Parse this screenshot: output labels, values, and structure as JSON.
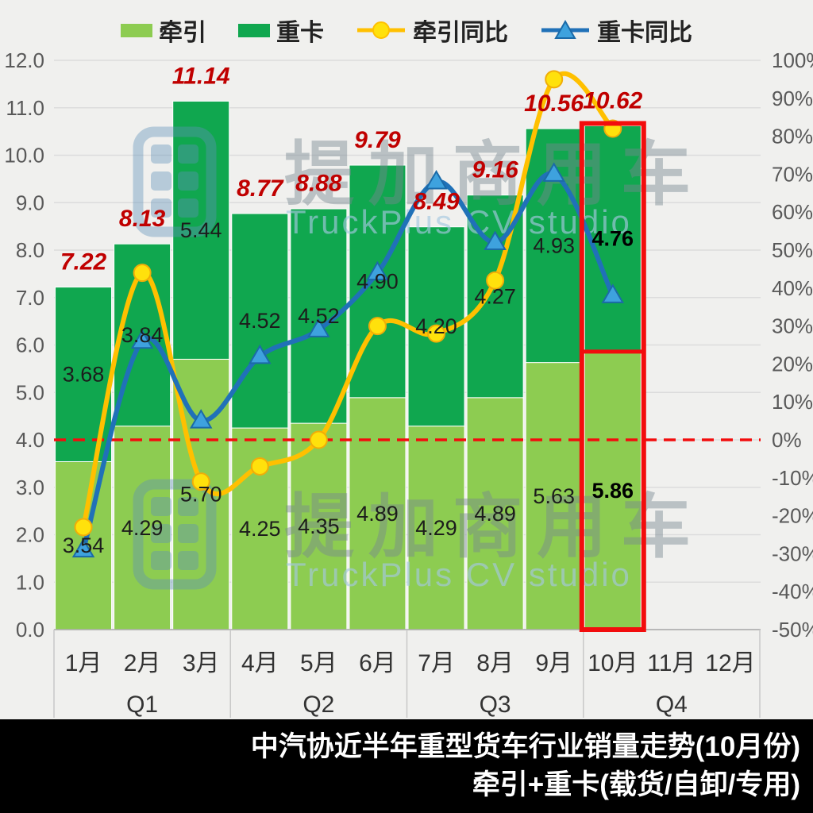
{
  "legend": {
    "items": [
      {
        "key": "tractor",
        "label": "牵引",
        "type": "bar",
        "color": "#8dcc51"
      },
      {
        "key": "heavy-truck",
        "label": "重卡",
        "type": "bar",
        "color": "#10a74f"
      },
      {
        "key": "tractor-yoy",
        "label": "牵引同比",
        "type": "line-circle",
        "color": "#ffc000",
        "marker_color": "#ffe10c"
      },
      {
        "key": "truck-yoy",
        "label": "重卡同比",
        "type": "line-triangle",
        "color": "#2071b8",
        "marker_color": "#3ea2de"
      }
    ]
  },
  "watermark": {
    "brand": "提加商用车",
    "studio": "TruckPlus CV studio"
  },
  "footer": {
    "line1": "中汽协近半年重型货车行业销量走势(10月份)",
    "line2": "牵引+重卡(载货/自卸/专用)"
  },
  "chart_data": {
    "type": "combo-stacked-bar-line",
    "categories": [
      "1月",
      "2月",
      "3月",
      "4月",
      "5月",
      "6月",
      "7月",
      "8月",
      "9月",
      "10月",
      "11月",
      "12月"
    ],
    "quarters": [
      "Q1",
      "Q2",
      "Q3",
      "Q4"
    ],
    "months_with_data": 10,
    "left_axis": {
      "min": 0,
      "max": 12,
      "step": 1,
      "tick_format": "0.0"
    },
    "right_axis": {
      "min": -50,
      "max": 100,
      "step": 10,
      "suffix": "%"
    },
    "bar_series": [
      {
        "name": "牵引",
        "stack_position": "bottom",
        "color": "#8dcc51",
        "values": [
          3.54,
          4.29,
          5.7,
          4.25,
          4.35,
          4.89,
          4.29,
          4.89,
          5.63,
          5.86
        ]
      },
      {
        "name": "重卡",
        "stack_position": "top",
        "color": "#10a74f",
        "values": [
          3.68,
          3.84,
          5.44,
          4.52,
          4.52,
          4.9,
          4.2,
          4.27,
          4.93,
          4.76
        ]
      }
    ],
    "totals": [
      7.22,
      8.13,
      11.14,
      8.77,
      8.88,
      9.79,
      8.49,
      9.16,
      10.56,
      10.62
    ],
    "line_series": [
      {
        "name": "牵引同比",
        "color": "#ffc000",
        "marker": "circle",
        "marker_fill": "#ffe10c",
        "axis": "right",
        "values_pct": [
          -23,
          44,
          -11,
          -7,
          0,
          30,
          28,
          42,
          95,
          82
        ]
      },
      {
        "name": "重卡同比",
        "color": "#2071b8",
        "marker": "triangle",
        "marker_fill": "#3ea2de",
        "axis": "right",
        "values_pct": [
          -29,
          26,
          5,
          22,
          29,
          44,
          68,
          52,
          70,
          38
        ]
      }
    ],
    "zero_line": {
      "value_pct": 0,
      "color": "#f20d0d",
      "style": "dashed"
    },
    "highlight": {
      "month_index": 9,
      "box_color": "#f20d0d",
      "bold_labels": true
    },
    "grid": true,
    "legend_position": "top"
  },
  "colors": {
    "background": "#f0f0ee",
    "gridline": "#dcdcdc",
    "axis_text": "#595959",
    "bar_label": "#1c1c1c",
    "total_label": "#c00000",
    "tractor_green": "#8dcc51",
    "truck_green": "#10a74f",
    "tractor_yoy_yellow": "#ffc000",
    "truck_yoy_blue": "#2071b8",
    "alert_red": "#f20d0d"
  }
}
